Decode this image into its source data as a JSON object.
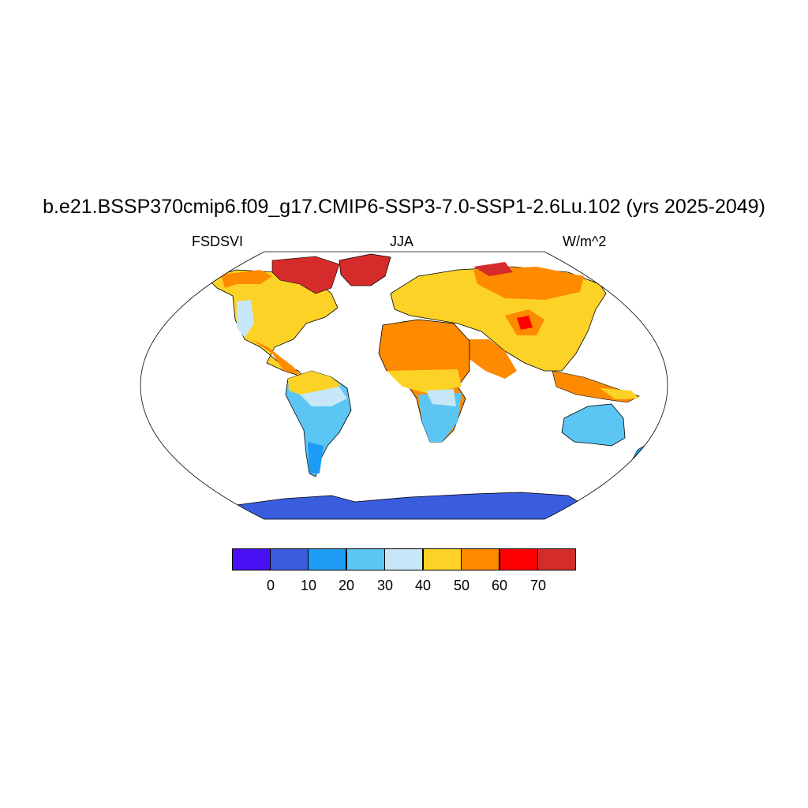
{
  "title": "b.e21.BSSP370cmip6.f09_g17.CMIP6-SSP3-7.0-SSP1-2.6Lu.102 (yrs 2025-2049)",
  "subtitle_left": "FSDSVI",
  "subtitle_center": "JJA",
  "subtitle_right": "W/m^2",
  "colorbar": {
    "colors": [
      "#4a11f5",
      "#3a5de0",
      "#1e9bf5",
      "#5bc6f4",
      "#c7e6f7",
      "#fcd226",
      "#fe8a00",
      "#ff0000",
      "#d62b2b"
    ],
    "labels": [
      "0",
      "10",
      "20",
      "30",
      "40",
      "50",
      "60",
      "70"
    ]
  },
  "map": {
    "projection": "robinson",
    "background": "#ffffff",
    "land_fill_note": "shaded by FSDSVI value"
  }
}
